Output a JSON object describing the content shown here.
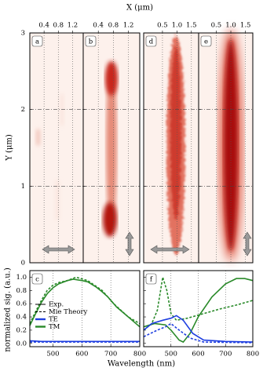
{
  "x_label_top": "X (μm)",
  "y_label_top": "Y (μm)",
  "y_label_bottom": "normalized sig. (a.u.)",
  "x_label_bottom": "Wavelength (nm)",
  "chart_data": [
    {
      "type": "image",
      "label": "a",
      "xlim": [
        0,
        1.5
      ],
      "xticks": [
        0.4,
        0.8,
        1.2
      ],
      "ylim": [
        0,
        3
      ],
      "yticks": [
        0,
        1,
        2,
        3
      ]
    },
    {
      "type": "image",
      "label": "b",
      "xlim": [
        0,
        1.5
      ],
      "xticks": [
        0.4,
        0.8,
        1.2
      ],
      "ylim": [
        0,
        3
      ],
      "yticks": [
        0,
        1,
        2,
        3
      ]
    },
    {
      "type": "image",
      "label": "d",
      "xlim": [
        -0.15,
        1.75
      ],
      "xticks": [
        0.5,
        {
          "value": 1.0,
          "label": "1.0"
        },
        1.5
      ],
      "ylim": [
        0,
        3
      ],
      "yticks": [
        0,
        1,
        2,
        3
      ]
    },
    {
      "type": "image",
      "label": "e",
      "xlim": [
        -0.1,
        1.75
      ],
      "xticks": [
        0.5,
        {
          "value": 1.0,
          "label": "1.0"
        },
        1.5
      ],
      "ylim": [
        0,
        3
      ],
      "yticks": [
        0,
        1,
        2,
        3
      ]
    },
    {
      "type": "line",
      "label": "c",
      "xlim": [
        420,
        800
      ],
      "xticks": [
        500,
        600,
        700,
        800
      ],
      "ylim": [
        -0.05,
        1.1
      ],
      "yticks": [
        {
          "value": 0,
          "label": "0.0"
        },
        0.2,
        0.4,
        0.6,
        0.8,
        {
          "value": 1,
          "label": "1.0"
        }
      ],
      "legend": [
        {
          "label": "Exp.",
          "color": "#000000",
          "dash": false
        },
        {
          "label": "Mie Theory",
          "color": "#000000",
          "dash": true
        },
        {
          "label": "TE",
          "color": "#1f3fe0",
          "dash": false
        },
        {
          "label": "TM",
          "color": "#2a8a2a",
          "dash": false
        }
      ],
      "series": [
        {
          "name": "TM",
          "style": "solid",
          "color": "#2a8a2a",
          "x": [
            420,
            440,
            460,
            480,
            500,
            520,
            550,
            570,
            600,
            620,
            650,
            670,
            690,
            720,
            760,
            800
          ],
          "values": [
            0.27,
            0.45,
            0.62,
            0.75,
            0.84,
            0.9,
            0.95,
            0.97,
            0.95,
            0.93,
            0.85,
            0.78,
            0.7,
            0.55,
            0.4,
            0.25
          ]
        },
        {
          "name": "TM",
          "style": "dashed",
          "color": "#2a8a2a",
          "x": [
            420,
            440,
            460,
            480,
            500,
            520,
            550,
            580,
            620,
            670,
            710,
            760,
            800
          ],
          "values": [
            0.3,
            0.48,
            0.65,
            0.8,
            0.88,
            0.92,
            0.95,
            1.0,
            0.95,
            0.8,
            0.6,
            0.4,
            0.3
          ]
        },
        {
          "name": "TE",
          "style": "solid",
          "color": "#1f3fe0",
          "x": [
            420,
            460,
            500,
            600,
            700,
            800
          ],
          "values": [
            0.04,
            0.03,
            0.03,
            0.03,
            0.03,
            0.03
          ]
        },
        {
          "name": "TE",
          "style": "dashed",
          "color": "#1f3fe0",
          "x": [
            420,
            500,
            600,
            700,
            800
          ],
          "values": [
            0.02,
            0.02,
            0.02,
            0.02,
            0.02
          ]
        }
      ]
    },
    {
      "type": "line",
      "label": "f",
      "xlim": [
        400,
        800
      ],
      "xticks": [
        500,
        600,
        700,
        800
      ],
      "ylim": [
        -0.05,
        1.1
      ],
      "yticks": [
        0,
        0.2,
        0.4,
        0.6,
        0.8,
        1
      ],
      "series": [
        {
          "name": "TM",
          "style": "solid",
          "color": "#2a8a2a",
          "x": [
            400,
            440,
            480,
            500,
            530,
            545,
            570,
            600,
            650,
            700,
            740,
            770,
            800
          ],
          "values": [
            0.25,
            0.3,
            0.28,
            0.2,
            0.05,
            0.02,
            0.15,
            0.4,
            0.7,
            0.9,
            0.98,
            0.98,
            0.95
          ]
        },
        {
          "name": "TM",
          "style": "dashed",
          "color": "#2a8a2a",
          "x": [
            400,
            430,
            450,
            470,
            485,
            500,
            520,
            560,
            620,
            680,
            740,
            800
          ],
          "values": [
            0.2,
            0.3,
            0.5,
            1.0,
            0.8,
            0.45,
            0.35,
            0.38,
            0.45,
            0.52,
            0.58,
            0.65
          ]
        },
        {
          "name": "TE",
          "style": "solid",
          "color": "#1f3fe0",
          "x": [
            400,
            430,
            470,
            500,
            520,
            545,
            580,
            620,
            700,
            800
          ],
          "values": [
            0.2,
            0.3,
            0.35,
            0.38,
            0.42,
            0.35,
            0.15,
            0.05,
            0.03,
            0.02
          ]
        },
        {
          "name": "TE",
          "style": "dashed",
          "color": "#1f3fe0",
          "x": [
            400,
            450,
            480,
            500,
            530,
            570,
            620,
            800
          ],
          "values": [
            0.1,
            0.2,
            0.25,
            0.3,
            0.2,
            0.08,
            0.02,
            0.01
          ]
        }
      ]
    }
  ]
}
